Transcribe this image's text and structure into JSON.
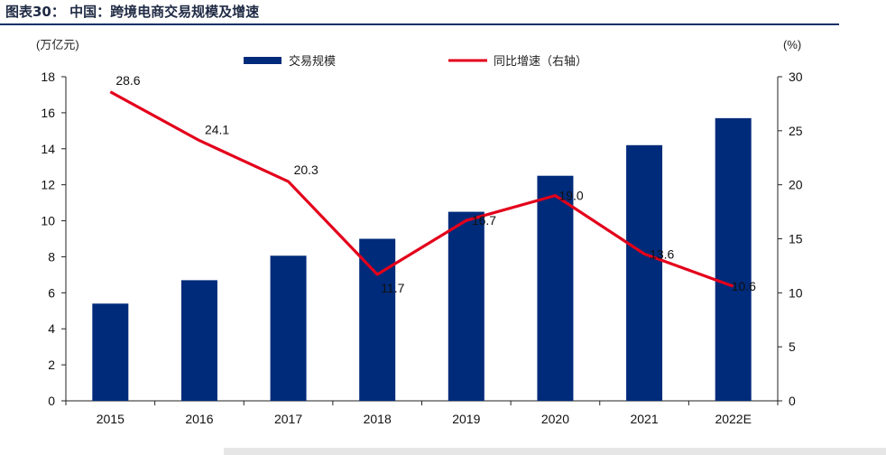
{
  "header": {
    "title": "图表30： 中国：跨境电商交易规模及增速"
  },
  "chart_data": {
    "type": "bar",
    "categories": [
      "2015",
      "2016",
      "2017",
      "2018",
      "2019",
      "2020",
      "2021",
      "2022E"
    ],
    "series": [
      {
        "name": "交易规模",
        "type": "bar",
        "axis": "left",
        "color": "#002b7a",
        "values": [
          5.4,
          6.7,
          8.06,
          9.0,
          10.5,
          12.5,
          14.2,
          15.7
        ]
      },
      {
        "name": "同比增速（右轴）",
        "type": "line",
        "axis": "right",
        "color": "#e3001b",
        "values": [
          28.6,
          24.1,
          20.3,
          11.7,
          16.7,
          19.0,
          13.6,
          10.6
        ],
        "labels": [
          "28.6",
          "24.1",
          "20.3",
          "11.7",
          "16.7",
          "19.0",
          "13.6",
          "10.6"
        ]
      }
    ],
    "y_left": {
      "unit_label": "(万亿元)",
      "ylim": [
        0,
        18
      ],
      "ticks": [
        0,
        2,
        4,
        6,
        8,
        10,
        12,
        14,
        16,
        18
      ]
    },
    "y_right": {
      "unit_label": "(%)",
      "ylim": [
        0,
        30
      ],
      "ticks": [
        0,
        5,
        10,
        15,
        20,
        25,
        30
      ]
    },
    "legend_position": "top-center",
    "grid": false
  }
}
